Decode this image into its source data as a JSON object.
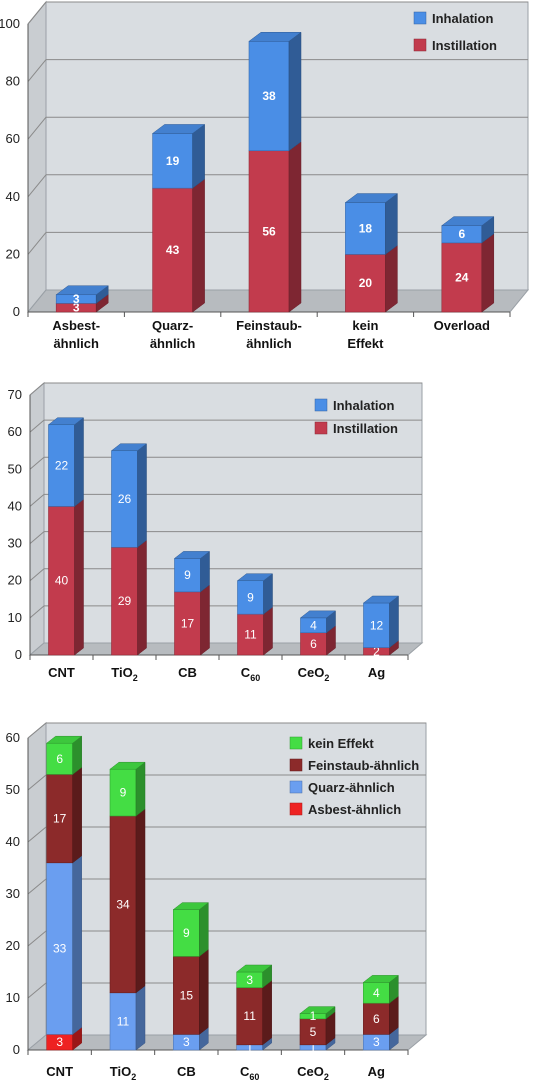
{
  "colors": {
    "inhalation": "#4a8ee6",
    "instillation": "#c23b4d",
    "kein_effekt": "#44dd44",
    "feinstaub": "#8c2a2a",
    "quarz": "#6a9ef0",
    "asbest": "#ee2222",
    "wall": "#d9dde1",
    "floor": "#b7bbbf",
    "grid": "#8a8a8a"
  },
  "chart_data": [
    {
      "type": "bar",
      "stacked": true,
      "categories": [
        [
          "Asbest-",
          "ähnlich"
        ],
        [
          "Quarz-",
          "ähnlich"
        ],
        [
          "Feinstaub-",
          "ähnlich"
        ],
        [
          "kein",
          "Effekt"
        ],
        [
          "Overload"
        ]
      ],
      "series": [
        {
          "name": "Instillation",
          "color_key": "instillation",
          "values": [
            3,
            43,
            56,
            20,
            24
          ]
        },
        {
          "name": "Inhalation",
          "color_key": "inhalation",
          "values": [
            3,
            19,
            38,
            18,
            6
          ]
        }
      ],
      "ylim": [
        0,
        100
      ],
      "yticks": [
        "0",
        "20",
        "40",
        "60",
        "80",
        "100"
      ],
      "legend": [
        "Inhalation",
        "Instillation"
      ],
      "legend_placement": "top-right",
      "grid": true
    },
    {
      "type": "bar",
      "stacked": true,
      "categories": [
        [
          "CNT"
        ],
        [
          "TiO",
          "2"
        ],
        [
          "CB"
        ],
        [
          "C",
          "60"
        ],
        [
          "CeO",
          "2"
        ],
        [
          "Ag"
        ]
      ],
      "series": [
        {
          "name": "Instillation",
          "color_key": "instillation",
          "values": [
            40,
            29,
            17,
            11,
            6,
            2
          ]
        },
        {
          "name": "Inhalation",
          "color_key": "inhalation",
          "values": [
            22,
            26,
            9,
            9,
            4,
            12
          ]
        }
      ],
      "ylim": [
        0,
        70
      ],
      "yticks": [
        "0",
        "10",
        "20",
        "30",
        "40",
        "50",
        "60",
        "70"
      ],
      "legend": [
        "Inhalation",
        "Instillation"
      ],
      "legend_placement": "top-right",
      "grid": true
    },
    {
      "type": "bar",
      "stacked": true,
      "categories": [
        [
          "CNT"
        ],
        [
          "TiO",
          "2"
        ],
        [
          "CB"
        ],
        [
          "C",
          "60"
        ],
        [
          "CeO",
          "2"
        ],
        [
          "Ag"
        ]
      ],
      "series": [
        {
          "name": "Asbest-ähnlich",
          "color_key": "asbest",
          "values": [
            3,
            0,
            0,
            0,
            0,
            0
          ]
        },
        {
          "name": "Quarz-ähnlich",
          "color_key": "quarz",
          "values": [
            33,
            11,
            3,
            1,
            1,
            3
          ]
        },
        {
          "name": "Feinstaub-ähnlich",
          "color_key": "feinstaub",
          "values": [
            17,
            34,
            15,
            11,
            5,
            6
          ]
        },
        {
          "name": "kein Effekt",
          "color_key": "kein_effekt",
          "values": [
            6,
            9,
            9,
            3,
            1,
            4
          ]
        }
      ],
      "ylim": [
        0,
        60
      ],
      "yticks": [
        "0",
        "10",
        "20",
        "30",
        "40",
        "50",
        "60"
      ],
      "legend": [
        "kein Effekt",
        "Feinstaub-ähnlich",
        "Quarz-ähnlich",
        "Asbest-ähnlich"
      ],
      "legend_placement": "top-right",
      "grid": true
    }
  ]
}
